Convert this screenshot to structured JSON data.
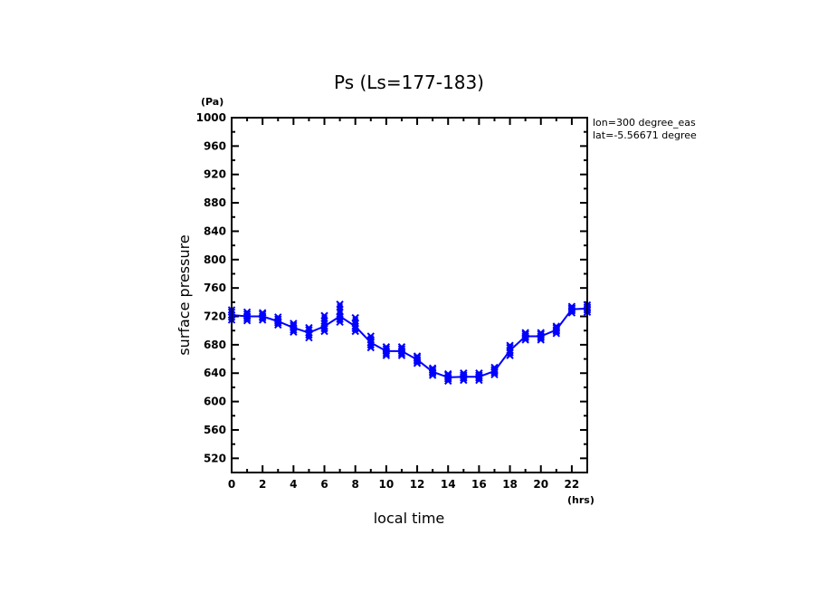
{
  "chart_data": {
    "type": "line",
    "title": "Ps (Ls=177-183)",
    "xlabel": "local time",
    "ylabel": "surface pressure",
    "xunit": "(hrs)",
    "yunit": "(Pa)",
    "xlim": [
      0,
      23
    ],
    "ylim": [
      500,
      1000
    ],
    "x_major_step": 2,
    "x_minor_step": 1,
    "y_major_step": 40,
    "y_minor_step": 20,
    "xticks": [
      "0",
      "2",
      "4",
      "6",
      "8",
      "10",
      "12",
      "14",
      "16",
      "18",
      "20",
      "22"
    ],
    "yticks": [
      "520",
      "560",
      "600",
      "640",
      "680",
      "720",
      "760",
      "800",
      "840",
      "880",
      "920",
      "960",
      "1000"
    ],
    "annotations": [
      "lon=300 degree_eas",
      "lat=-5.56671 degree"
    ],
    "grid": false,
    "series": [
      {
        "name": "Ps",
        "color": "#0000ff",
        "marker": "cross",
        "x": [
          0,
          1,
          2,
          3,
          4,
          5,
          6,
          7,
          8,
          9,
          10,
          11,
          12,
          13,
          14,
          15,
          16,
          17,
          18,
          19,
          20,
          21,
          22,
          23
        ],
        "values": [
          722,
          720,
          720,
          713,
          704,
          697,
          706,
          720,
          706,
          683,
          671,
          671,
          659,
          642,
          634,
          635,
          635,
          643,
          672,
          692,
          692,
          701,
          730,
          731
        ],
        "samples": [
          [
            715,
            719,
            722,
            726,
            729
          ],
          [
            714,
            717,
            720,
            723,
            726
          ],
          [
            715,
            718,
            720,
            723,
            725
          ],
          [
            708,
            711,
            713,
            716,
            719
          ],
          [
            698,
            701,
            704,
            707,
            710
          ],
          [
            690,
            694,
            697,
            701,
            704
          ],
          [
            699,
            703,
            706,
            710,
            721
          ],
          [
            712,
            716,
            720,
            726,
            737
          ],
          [
            699,
            703,
            706,
            710,
            718
          ],
          [
            676,
            680,
            683,
            687,
            692
          ],
          [
            665,
            668,
            671,
            674,
            677
          ],
          [
            665,
            668,
            671,
            674,
            677
          ],
          [
            654,
            657,
            659,
            662,
            664
          ],
          [
            637,
            640,
            642,
            645,
            647
          ],
          [
            629,
            632,
            634,
            637,
            639
          ],
          [
            630,
            633,
            635,
            637,
            640
          ],
          [
            630,
            633,
            635,
            637,
            640
          ],
          [
            638,
            641,
            643,
            645,
            648
          ],
          [
            665,
            669,
            672,
            676,
            679
          ],
          [
            687,
            690,
            692,
            695,
            697
          ],
          [
            687,
            690,
            692,
            695,
            697
          ],
          [
            696,
            699,
            701,
            704,
            706
          ],
          [
            725,
            728,
            730,
            732,
            734
          ],
          [
            726,
            729,
            731,
            733,
            736
          ]
        ]
      }
    ]
  }
}
